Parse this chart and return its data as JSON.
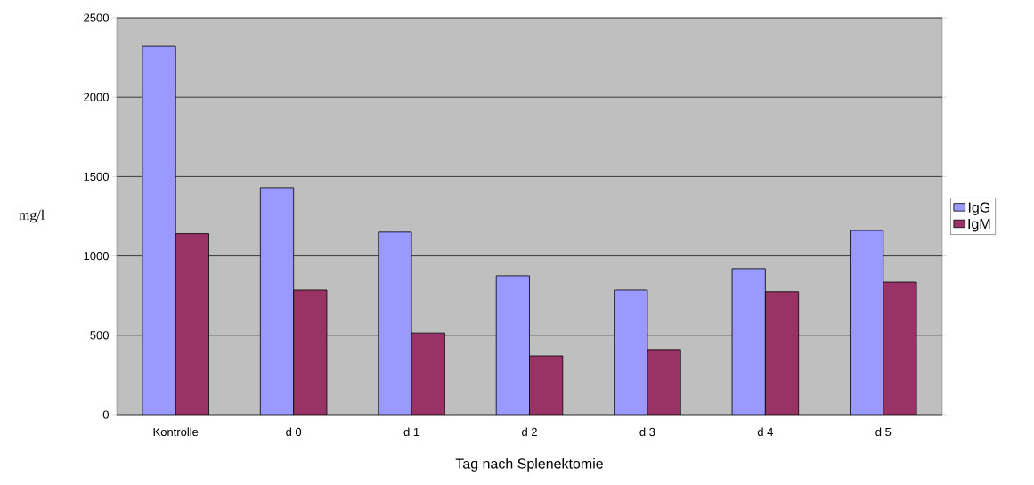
{
  "chart_data": {
    "type": "bar",
    "xlabel": "Tag nach Splenektomie",
    "ylabel": "mg/l",
    "categories": [
      "Kontrolle",
      "d 0",
      "d 1",
      "d 2",
      "d 3",
      "d 4",
      "d 5"
    ],
    "series": [
      {
        "name": "IgG",
        "color": "#9999ff",
        "values": [
          2320,
          1430,
          1150,
          875,
          785,
          920,
          1160
        ]
      },
      {
        "name": "IgM",
        "color": "#993366",
        "values": [
          1140,
          785,
          515,
          370,
          410,
          775,
          835
        ]
      }
    ],
    "ylim": [
      0,
      2500
    ],
    "yticks": [
      0,
      500,
      1000,
      1500,
      2000,
      2500
    ],
    "grid": "y",
    "legend": "right"
  }
}
